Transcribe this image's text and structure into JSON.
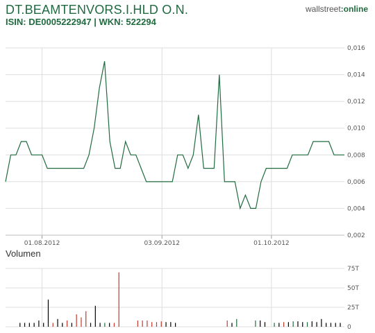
{
  "header": {
    "title": "DT.BEAMTENVORS.I.HLD O.N.",
    "subtitle": "ISIN: DE0005222947 | WKN: 522294",
    "brand_prefix": "wallstreet",
    "brand_suffix": ":online"
  },
  "volume_label": "Volumen",
  "colors": {
    "line": "#1f6b3f",
    "grid": "#dddddd",
    "vol_up": "#1f6b3f",
    "vol_down": "#c0392b",
    "vol_neutral": "#000000"
  },
  "chart_data": [
    {
      "type": "line",
      "title": "DT.BEAMTENVORS.I.HLD O.N.",
      "x_tick_labels": [
        "01.08.2012",
        "03.09.2012",
        "01.10.2012"
      ],
      "x_tick_index": [
        7,
        30,
        51
      ],
      "ylim": [
        0.002,
        0.016
      ],
      "y_ticks": [
        0.002,
        0.004,
        0.006,
        0.008,
        0.01,
        0.012,
        0.014,
        0.016
      ],
      "y_tick_labels": [
        "0,002",
        "0,004",
        "0,006",
        "0,008",
        "0,010",
        "0,012",
        "0,014",
        "0,016"
      ],
      "grid": true,
      "values": [
        0.006,
        0.008,
        0.008,
        0.009,
        0.009,
        0.008,
        0.008,
        0.008,
        0.007,
        0.007,
        0.007,
        0.007,
        0.007,
        0.007,
        0.007,
        0.007,
        0.008,
        0.01,
        0.013,
        0.015,
        0.009,
        0.007,
        0.007,
        0.009,
        0.008,
        0.008,
        0.007,
        0.006,
        0.006,
        0.006,
        0.006,
        0.006,
        0.006,
        0.008,
        0.008,
        0.007,
        0.008,
        0.011,
        0.007,
        0.007,
        0.007,
        0.014,
        0.006,
        0.006,
        0.006,
        0.004,
        0.005,
        0.004,
        0.004,
        0.006,
        0.007,
        0.007,
        0.007,
        0.007,
        0.007,
        0.008,
        0.008,
        0.008,
        0.008,
        0.009,
        0.009,
        0.009,
        0.009,
        0.008,
        0.008,
        0.008
      ]
    },
    {
      "type": "bar",
      "title": "Volumen",
      "ylim": [
        0,
        75
      ],
      "y_ticks": [
        0,
        25,
        50,
        75
      ],
      "y_tick_labels": [
        "0",
        "25T",
        "50T",
        "75T"
      ],
      "grid": true,
      "values": [
        0,
        5,
        5,
        5,
        5,
        8,
        5,
        35,
        5,
        10,
        5,
        8,
        5,
        16,
        12,
        20,
        5,
        27,
        5,
        5,
        5,
        5,
        70,
        0,
        0,
        0,
        8,
        8,
        8,
        6,
        6,
        7,
        6,
        6,
        5,
        0,
        0,
        0,
        0,
        0,
        0,
        0,
        0,
        0,
        0,
        8,
        5,
        10,
        0,
        0,
        0,
        8,
        8,
        6,
        0,
        5,
        5,
        6,
        6,
        7,
        7,
        6,
        6,
        7,
        6,
        10,
        5,
        5,
        5,
        5
      ],
      "colors": [
        "k",
        "k",
        "k",
        "k",
        "k",
        "k",
        "k",
        "k",
        "r",
        "k",
        "k",
        "r",
        "k",
        "r",
        "r",
        "r",
        "k",
        "k",
        "k",
        "g",
        "k",
        "r",
        "r",
        "k",
        "k",
        "k",
        "r",
        "r",
        "r",
        "r",
        "r",
        "r",
        "k",
        "k",
        "k",
        "k",
        "k",
        "k",
        "k",
        "k",
        "k",
        "k",
        "k",
        "k",
        "k",
        "r",
        "k",
        "g",
        "k",
        "k",
        "k",
        "g",
        "k",
        "k",
        "k",
        "g",
        "k",
        "r",
        "k",
        "g",
        "k",
        "k",
        "g",
        "k",
        "k",
        "k",
        "k",
        "k",
        "k",
        "k"
      ]
    }
  ]
}
